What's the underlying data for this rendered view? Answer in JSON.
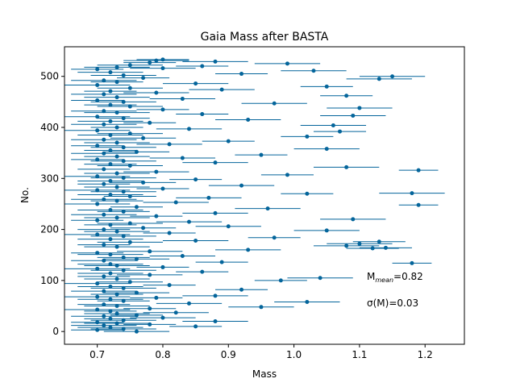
{
  "chart_data": {
    "type": "scatter",
    "title": "Gaia Mass after BASTA",
    "xlabel": "Mass",
    "ylabel": "No.",
    "xlim": [
      0.65,
      1.26
    ],
    "ylim": [
      -25,
      558
    ],
    "x_ticks": [
      "0.7",
      "0.8",
      "0.9",
      "1.0",
      "1.1",
      "1.2"
    ],
    "y_ticks": [
      "0",
      "100",
      "200",
      "300",
      "400",
      "500"
    ],
    "grid": false,
    "legend": "none",
    "marker_color": "#04659b",
    "series": [
      {
        "error_bars": "horizontal",
        "points": [
          [
            0.76,
            0,
            0.05
          ],
          [
            0.7,
            3,
            0.04
          ],
          [
            0.74,
            5,
            0.05
          ],
          [
            0.72,
            8,
            0.05
          ],
          [
            0.85,
            10,
            0.04
          ],
          [
            0.71,
            12,
            0.05
          ],
          [
            0.78,
            14,
            0.04
          ],
          [
            0.73,
            16,
            0.05
          ],
          [
            0.7,
            18,
            0.04
          ],
          [
            0.88,
            20,
            0.05
          ],
          [
            0.74,
            22,
            0.05
          ],
          [
            0.72,
            25,
            0.04
          ],
          [
            0.8,
            27,
            0.05
          ],
          [
            0.71,
            30,
            0.05
          ],
          [
            0.76,
            32,
            0.04
          ],
          [
            0.73,
            35,
            0.05
          ],
          [
            0.82,
            37,
            0.05
          ],
          [
            0.72,
            40,
            0.04
          ],
          [
            0.7,
            43,
            0.05
          ],
          [
            0.78,
            45,
            0.04
          ],
          [
            0.95,
            48,
            0.05
          ],
          [
            0.73,
            50,
            0.05
          ],
          [
            0.71,
            53,
            0.04
          ],
          [
            0.84,
            55,
            0.05
          ],
          [
            1.02,
            58,
            0.05
          ],
          [
            0.74,
            60,
            0.04
          ],
          [
            0.72,
            63,
            0.05
          ],
          [
            0.79,
            66,
            0.04
          ],
          [
            0.7,
            68,
            0.05
          ],
          [
            0.88,
            70,
            0.05
          ],
          [
            0.73,
            73,
            0.04
          ],
          [
            0.76,
            76,
            0.05
          ],
          [
            0.71,
            79,
            0.05
          ],
          [
            0.92,
            82,
            0.04
          ],
          [
            0.74,
            85,
            0.05
          ],
          [
            0.72,
            88,
            0.05
          ],
          [
            0.81,
            91,
            0.04
          ],
          [
            0.7,
            94,
            0.05
          ],
          [
            0.75,
            97,
            0.05
          ],
          [
            0.98,
            100,
            0.04
          ],
          [
            0.73,
            103,
            0.05
          ],
          [
            1.04,
            105,
            0.05
          ],
          [
            0.71,
            108,
            0.04
          ],
          [
            0.78,
            111,
            0.05
          ],
          [
            0.72,
            114,
            0.05
          ],
          [
            0.86,
            117,
            0.04
          ],
          [
            0.74,
            120,
            0.05
          ],
          [
            0.7,
            123,
            0.05
          ],
          [
            0.8,
            126,
            0.04
          ],
          [
            0.73,
            129,
            0.05
          ],
          [
            1.18,
            134,
            0.03
          ],
          [
            0.72,
            132,
            0.05
          ],
          [
            0.89,
            136,
            0.04
          ],
          [
            0.71,
            139,
            0.05
          ],
          [
            0.76,
            142,
            0.05
          ],
          [
            0.74,
            145,
            0.04
          ],
          [
            0.83,
            148,
            0.05
          ],
          [
            0.72,
            151,
            0.05
          ],
          [
            0.7,
            154,
            0.04
          ],
          [
            0.78,
            157,
            0.05
          ],
          [
            0.93,
            160,
            0.05
          ],
          [
            1.12,
            163,
            0.04
          ],
          [
            1.14,
            164,
            0.04
          ],
          [
            0.73,
            166,
            0.05
          ],
          [
            1.08,
            168,
            0.05
          ],
          [
            0.71,
            170,
            0.04
          ],
          [
            1.1,
            172,
            0.05
          ],
          [
            0.75,
            175,
            0.05
          ],
          [
            1.13,
            176,
            0.04
          ],
          [
            0.85,
            178,
            0.05
          ],
          [
            0.72,
            181,
            0.05
          ],
          [
            0.97,
            184,
            0.04
          ],
          [
            0.74,
            187,
            0.05
          ],
          [
            0.7,
            190,
            0.05
          ],
          [
            0.81,
            193,
            0.04
          ],
          [
            0.73,
            196,
            0.05
          ],
          [
            1.05,
            198,
            0.05
          ],
          [
            0.71,
            200,
            0.04
          ],
          [
            0.77,
            203,
            0.05
          ],
          [
            0.9,
            206,
            0.05
          ],
          [
            0.72,
            209,
            0.04
          ],
          [
            0.75,
            212,
            0.05
          ],
          [
            0.84,
            215,
            0.05
          ],
          [
            0.7,
            218,
            0.04
          ],
          [
            1.09,
            220,
            0.05
          ],
          [
            0.73,
            223,
            0.05
          ],
          [
            0.79,
            226,
            0.04
          ],
          [
            0.71,
            229,
            0.05
          ],
          [
            0.88,
            232,
            0.05
          ],
          [
            0.74,
            235,
            0.04
          ],
          [
            0.72,
            238,
            0.05
          ],
          [
            0.96,
            241,
            0.05
          ],
          [
            0.76,
            244,
            0.04
          ],
          [
            1.19,
            248,
            0.03
          ],
          [
            0.7,
            250,
            0.05
          ],
          [
            0.82,
            253,
            0.05
          ],
          [
            0.73,
            256,
            0.04
          ],
          [
            0.71,
            259,
            0.05
          ],
          [
            0.87,
            262,
            0.05
          ],
          [
            0.75,
            265,
            0.04
          ],
          [
            1.18,
            271,
            0.05
          ],
          [
            0.72,
            268,
            0.05
          ],
          [
            1.02,
            270,
            0.04
          ],
          [
            0.74,
            274,
            0.05
          ],
          [
            0.7,
            277,
            0.05
          ],
          [
            0.8,
            280,
            0.04
          ],
          [
            0.73,
            283,
            0.05
          ],
          [
            0.92,
            286,
            0.05
          ],
          [
            0.71,
            289,
            0.04
          ],
          [
            0.77,
            292,
            0.05
          ],
          [
            0.72,
            295,
            0.05
          ],
          [
            0.85,
            298,
            0.04
          ],
          [
            0.74,
            301,
            0.05
          ],
          [
            0.7,
            304,
            0.05
          ],
          [
            0.99,
            307,
            0.04
          ],
          [
            0.73,
            310,
            0.05
          ],
          [
            0.79,
            313,
            0.05
          ],
          [
            1.19,
            316,
            0.03
          ],
          [
            0.71,
            318,
            0.04
          ],
          [
            1.08,
            322,
            0.05
          ],
          [
            0.75,
            325,
            0.05
          ],
          [
            0.72,
            328,
            0.04
          ],
          [
            0.88,
            331,
            0.05
          ],
          [
            0.74,
            334,
            0.05
          ],
          [
            0.7,
            337,
            0.04
          ],
          [
            0.83,
            340,
            0.05
          ],
          [
            0.73,
            343,
            0.05
          ],
          [
            0.95,
            346,
            0.04
          ],
          [
            0.71,
            349,
            0.05
          ],
          [
            0.76,
            352,
            0.05
          ],
          [
            0.72,
            355,
            0.04
          ],
          [
            1.05,
            358,
            0.05
          ],
          [
            0.74,
            361,
            0.05
          ],
          [
            0.7,
            364,
            0.04
          ],
          [
            0.81,
            367,
            0.05
          ],
          [
            0.73,
            370,
            0.05
          ],
          [
            0.9,
            373,
            0.04
          ],
          [
            0.71,
            376,
            0.05
          ],
          [
            0.77,
            379,
            0.05
          ],
          [
            1.02,
            382,
            0.04
          ],
          [
            0.72,
            385,
            0.05
          ],
          [
            0.75,
            388,
            0.05
          ],
          [
            1.07,
            392,
            0.04
          ],
          [
            0.7,
            394,
            0.05
          ],
          [
            0.84,
            397,
            0.05
          ],
          [
            0.73,
            400,
            0.04
          ],
          [
            1.06,
            404,
            0.05
          ],
          [
            0.71,
            406,
            0.05
          ],
          [
            0.78,
            409,
            0.04
          ],
          [
            0.72,
            412,
            0.05
          ],
          [
            0.93,
            415,
            0.05
          ],
          [
            0.74,
            418,
            0.04
          ],
          [
            1.09,
            423,
            0.05
          ],
          [
            0.7,
            421,
            0.05
          ],
          [
            0.86,
            426,
            0.04
          ],
          [
            0.73,
            429,
            0.05
          ],
          [
            0.71,
            432,
            0.05
          ],
          [
            0.8,
            435,
            0.04
          ],
          [
            1.1,
            438,
            0.05
          ],
          [
            0.75,
            441,
            0.05
          ],
          [
            0.72,
            444,
            0.04
          ],
          [
            0.97,
            447,
            0.05
          ],
          [
            0.74,
            450,
            0.05
          ],
          [
            0.7,
            453,
            0.04
          ],
          [
            0.83,
            456,
            0.05
          ],
          [
            0.73,
            459,
            0.05
          ],
          [
            1.08,
            462,
            0.04
          ],
          [
            0.71,
            465,
            0.05
          ],
          [
            0.79,
            468,
            0.05
          ],
          [
            0.72,
            471,
            0.04
          ],
          [
            0.89,
            474,
            0.05
          ],
          [
            0.75,
            477,
            0.05
          ],
          [
            1.05,
            480,
            0.04
          ],
          [
            0.7,
            483,
            0.05
          ],
          [
            0.85,
            486,
            0.05
          ],
          [
            0.73,
            489,
            0.04
          ],
          [
            0.71,
            492,
            0.05
          ],
          [
            1.13,
            495,
            0.05
          ],
          [
            0.77,
            497,
            0.04
          ],
          [
            1.15,
            500,
            0.05
          ],
          [
            0.74,
            502,
            0.05
          ],
          [
            0.92,
            505,
            0.04
          ],
          [
            0.72,
            508,
            0.05
          ],
          [
            1.03,
            511,
            0.05
          ],
          [
            0.7,
            514,
            0.04
          ],
          [
            0.8,
            516,
            0.05
          ],
          [
            0.73,
            518,
            0.05
          ],
          [
            0.86,
            520,
            0.04
          ],
          [
            0.75,
            522,
            0.05
          ],
          [
            0.99,
            525,
            0.05
          ],
          [
            0.78,
            527,
            0.04
          ],
          [
            0.88,
            529,
            0.05
          ],
          [
            0.79,
            531,
            0.05
          ],
          [
            0.8,
            533,
            0.04
          ]
        ]
      }
    ],
    "annotations": [
      {
        "text": "M",
        "sub": "mean",
        "value": "=0.82"
      },
      {
        "text": "σ(M)=0.03"
      }
    ]
  }
}
